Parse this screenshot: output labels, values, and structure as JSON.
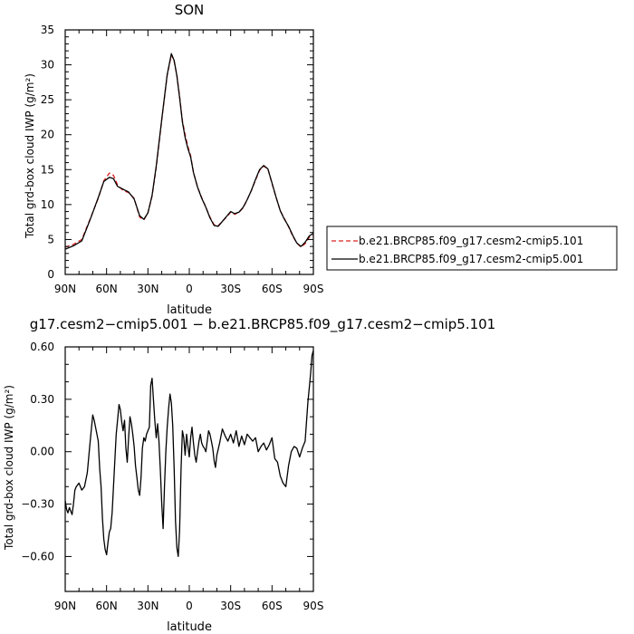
{
  "chart_data": [
    {
      "type": "line",
      "title": "SON",
      "xlabel": "latitude",
      "ylabel": "Total grd-box cloud IWP (g/m²)",
      "xlim": [
        90,
        -90
      ],
      "ylim": [
        0,
        35
      ],
      "x_tick_values": [
        90,
        60,
        30,
        0,
        -30,
        -60,
        -90
      ],
      "x_tick_labels": [
        "90N",
        "60N",
        "30N",
        "0",
        "30S",
        "60S",
        "90S"
      ],
      "y_tick_values": [
        0,
        5,
        10,
        15,
        20,
        25,
        30,
        35
      ],
      "y_tick_labels": [
        "0",
        "5",
        "10",
        "15",
        "20",
        "25",
        "30",
        "35"
      ],
      "legend_position": "right",
      "series": [
        {
          "name": "b.e21.BRCP85.f09_g17.cesm2-cmip5.101",
          "color": "#dd2222",
          "style": "dashed",
          "x": [
            90,
            84,
            78,
            72,
            66,
            62,
            58,
            55,
            52,
            48,
            44,
            40,
            36,
            33,
            30,
            27,
            24,
            20,
            16,
            13,
            11,
            9,
            7,
            5,
            3,
            1,
            -1,
            -3,
            -6,
            -9,
            -12,
            -15,
            -18,
            -21,
            -24,
            -27,
            -30,
            -33,
            -36,
            -39,
            -42,
            -45,
            -48,
            -51,
            -54,
            -57,
            -60,
            -63,
            -66,
            -69,
            -72,
            -75,
            -78,
            -81,
            -84,
            -87,
            -90
          ],
          "y": [
            3.9,
            4.3,
            5.0,
            7.9,
            10.9,
            13.4,
            14.5,
            14.2,
            12.8,
            12.0,
            11.7,
            10.9,
            8.2,
            7.8,
            8.8,
            11.2,
            15.3,
            22.1,
            28.5,
            31.4,
            30.5,
            28.5,
            25.5,
            22.0,
            20.0,
            18.3,
            17.0,
            14.6,
            12.5,
            11.0,
            9.6,
            8.2,
            7.1,
            7.0,
            7.6,
            8.2,
            8.9,
            8.6,
            8.9,
            9.5,
            10.7,
            12.0,
            13.5,
            14.9,
            15.5,
            15.1,
            13.0,
            11.0,
            9.1,
            8.0,
            6.8,
            5.5,
            4.5,
            3.9,
            4.4,
            5.3,
            5.6
          ]
        },
        {
          "name": "b.e21.BRCP85.f09_g17.cesm2-cmip5.001",
          "color": "#000000",
          "style": "solid",
          "x": [
            90,
            84,
            78,
            72,
            66,
            62,
            58,
            55,
            52,
            48,
            44,
            40,
            36,
            33,
            30,
            27,
            24,
            20,
            16,
            13,
            11,
            9,
            7,
            5,
            3,
            1,
            -1,
            -3,
            -6,
            -9,
            -12,
            -15,
            -18,
            -21,
            -24,
            -27,
            -30,
            -33,
            -36,
            -39,
            -42,
            -45,
            -48,
            -51,
            -54,
            -57,
            -60,
            -63,
            -66,
            -69,
            -72,
            -75,
            -78,
            -81,
            -84,
            -87,
            -90
          ],
          "y": [
            3.6,
            4.1,
            4.8,
            7.8,
            11.0,
            13.3,
            13.9,
            13.7,
            12.6,
            12.2,
            11.8,
            10.8,
            8.4,
            7.9,
            8.8,
            11.3,
            15.5,
            22.2,
            28.6,
            31.6,
            30.6,
            28.4,
            25.3,
            21.8,
            19.6,
            18.0,
            16.8,
            14.6,
            12.5,
            10.9,
            9.6,
            8.1,
            7.0,
            6.9,
            7.6,
            8.3,
            9.0,
            8.7,
            8.9,
            9.6,
            10.7,
            12.0,
            13.6,
            15.0,
            15.6,
            15.1,
            13.1,
            11.0,
            9.1,
            7.9,
            6.9,
            5.6,
            4.5,
            4.0,
            4.6,
            5.5,
            5.9
          ]
        }
      ]
    },
    {
      "type": "line",
      "title": "g17.cesm2−cmip5.001 − b.e21.BRCP85.f09_g17.cesm2−cmip5.101",
      "xlabel": "latitude",
      "ylabel": "Total grd-box cloud IWP (g/m²)",
      "xlim": [
        90,
        -90
      ],
      "ylim": [
        -0.8,
        0.6
      ],
      "x_tick_values": [
        90,
        60,
        30,
        0,
        -30,
        -60,
        -90
      ],
      "x_tick_labels": [
        "90N",
        "60N",
        "30N",
        "0",
        "30S",
        "60S",
        "90S"
      ],
      "y_tick_values": [
        0.6,
        0.3,
        0.0,
        -0.3,
        -0.6
      ],
      "y_tick_labels": [
        "0.60",
        "0.30",
        "0.00",
        "−0.30",
        "−0.60"
      ],
      "series": [
        {
          "color": "#000000",
          "x": [
            90,
            89,
            88,
            87,
            86,
            85,
            84,
            83,
            82,
            80,
            78,
            76,
            74,
            72,
            70,
            69,
            68,
            67,
            66,
            65,
            64,
            63,
            62,
            61,
            60,
            59,
            58,
            57,
            56,
            55,
            54,
            53,
            52,
            51,
            50,
            49,
            48,
            47,
            46,
            45,
            44,
            43,
            42,
            41,
            40,
            39,
            38,
            37,
            36,
            35,
            34,
            33,
            32,
            31,
            30,
            29,
            28,
            27,
            26,
            25,
            24,
            23,
            22,
            21,
            20,
            19,
            18,
            17,
            16,
            15,
            14,
            13,
            12,
            11,
            10,
            9,
            8,
            7,
            6,
            5,
            4,
            3,
            2,
            1,
            0,
            -1,
            -2,
            -3,
            -4,
            -5,
            -6,
            -7,
            -8,
            -9,
            -10,
            -11,
            -12,
            -13,
            -14,
            -15,
            -16,
            -17,
            -18,
            -19,
            -20,
            -22,
            -24,
            -26,
            -28,
            -30,
            -32,
            -34,
            -36,
            -38,
            -40,
            -42,
            -44,
            -46,
            -48,
            -50,
            -52,
            -54,
            -56,
            -58,
            -60,
            -62,
            -64,
            -66,
            -68,
            -70,
            -72,
            -74,
            -76,
            -78,
            -80,
            -82,
            -84,
            -86,
            -88,
            -89,
            -90
          ],
          "y": [
            -0.28,
            -0.33,
            -0.35,
            -0.32,
            -0.34,
            -0.36,
            -0.3,
            -0.22,
            -0.2,
            -0.18,
            -0.22,
            -0.2,
            -0.12,
            0.05,
            0.21,
            0.18,
            0.14,
            0.1,
            0.06,
            -0.1,
            -0.2,
            -0.38,
            -0.5,
            -0.56,
            -0.59,
            -0.52,
            -0.46,
            -0.44,
            -0.35,
            -0.2,
            -0.05,
            0.1,
            0.18,
            0.27,
            0.24,
            0.17,
            0.12,
            0.18,
            0.02,
            -0.06,
            0.08,
            0.2,
            0.16,
            0.1,
            0.03,
            -0.08,
            -0.15,
            -0.22,
            -0.25,
            -0.15,
            0.02,
            0.08,
            0.06,
            0.1,
            0.12,
            0.14,
            0.38,
            0.42,
            0.3,
            0.18,
            0.08,
            0.16,
            0.06,
            -0.1,
            -0.3,
            -0.44,
            -0.2,
            0.0,
            0.14,
            0.25,
            0.33,
            0.28,
            0.15,
            -0.1,
            -0.4,
            -0.55,
            -0.6,
            -0.45,
            -0.1,
            0.12,
            0.08,
            -0.02,
            0.1,
            0.03,
            -0.03,
            0.08,
            0.14,
            0.05,
            -0.02,
            -0.06,
            0.0,
            0.06,
            0.1,
            0.05,
            0.03,
            0.02,
            0.0,
            0.06,
            0.12,
            0.1,
            0.06,
            0.02,
            -0.05,
            -0.09,
            -0.02,
            0.05,
            0.13,
            0.09,
            0.06,
            0.1,
            0.05,
            0.12,
            0.03,
            0.09,
            0.04,
            0.1,
            0.08,
            0.06,
            0.08,
            0.0,
            0.03,
            0.05,
            0.01,
            0.04,
            0.08,
            -0.04,
            -0.06,
            -0.14,
            -0.18,
            -0.2,
            -0.08,
            0.0,
            0.03,
            0.02,
            -0.03,
            0.02,
            0.06,
            0.28,
            0.45,
            0.55,
            0.58
          ]
        }
      ]
    }
  ]
}
